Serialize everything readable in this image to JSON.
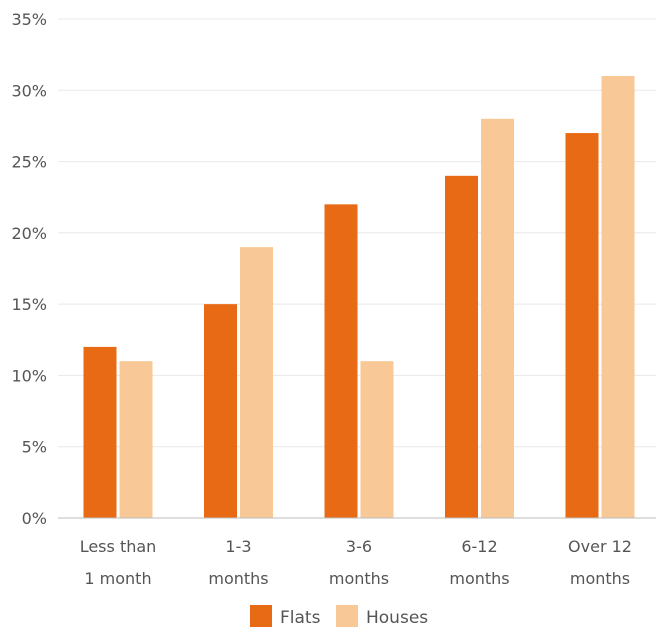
{
  "chart_data": {
    "type": "bar",
    "categories": [
      [
        "Less than",
        "1 month"
      ],
      [
        "1-3",
        "months"
      ],
      [
        "3-6",
        "months"
      ],
      [
        "6-12",
        "months"
      ],
      [
        "Over 12",
        "months"
      ]
    ],
    "series": [
      {
        "name": "Flats",
        "color": "#e96a14",
        "values": [
          12,
          15,
          22,
          24,
          27
        ]
      },
      {
        "name": "Houses",
        "color": "#f8c896",
        "values": [
          11,
          19,
          11,
          28,
          31
        ]
      }
    ],
    "yticks": [
      "0%",
      "5%",
      "10%",
      "15%",
      "20%",
      "25%",
      "30%",
      "35%"
    ],
    "ylim": [
      0,
      35
    ],
    "grid": true,
    "legend_position": "bottom-center"
  }
}
